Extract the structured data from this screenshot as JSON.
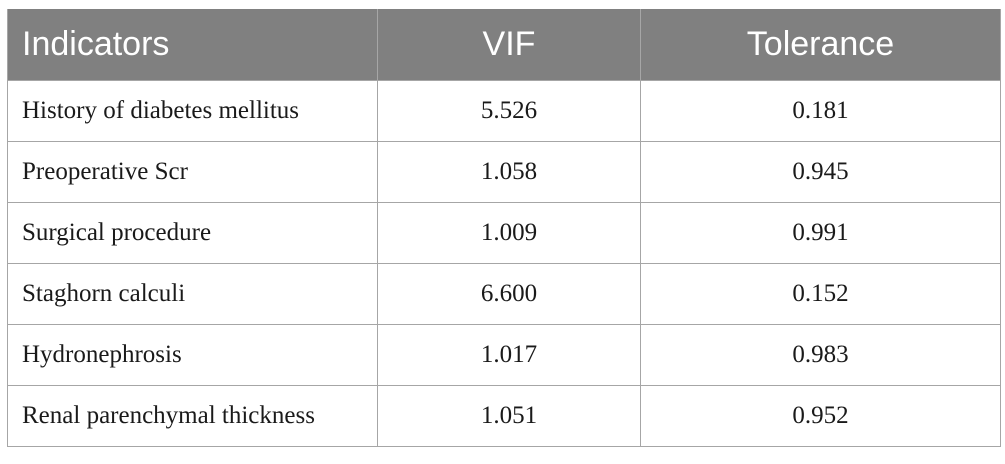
{
  "table": {
    "headers": [
      "Indicators",
      "VIF",
      "Tolerance"
    ],
    "rows": [
      [
        "History of diabetes mellitus",
        "5.526",
        "0.181"
      ],
      [
        "Preoperative Scr",
        "1.058",
        "0.945"
      ],
      [
        "Surgical procedure",
        "1.009",
        "0.991"
      ],
      [
        "Staghorn calculi",
        "6.600",
        "0.152"
      ],
      [
        "Hydronephrosis",
        "1.017",
        "0.983"
      ],
      [
        "Renal parenchymal thickness",
        "1.051",
        "0.952"
      ]
    ]
  },
  "colors": {
    "header_background": "#808080",
    "header_text": "#ffffff",
    "grid_lines": "#a6a6a6",
    "body_text": "#1a1a1a"
  }
}
